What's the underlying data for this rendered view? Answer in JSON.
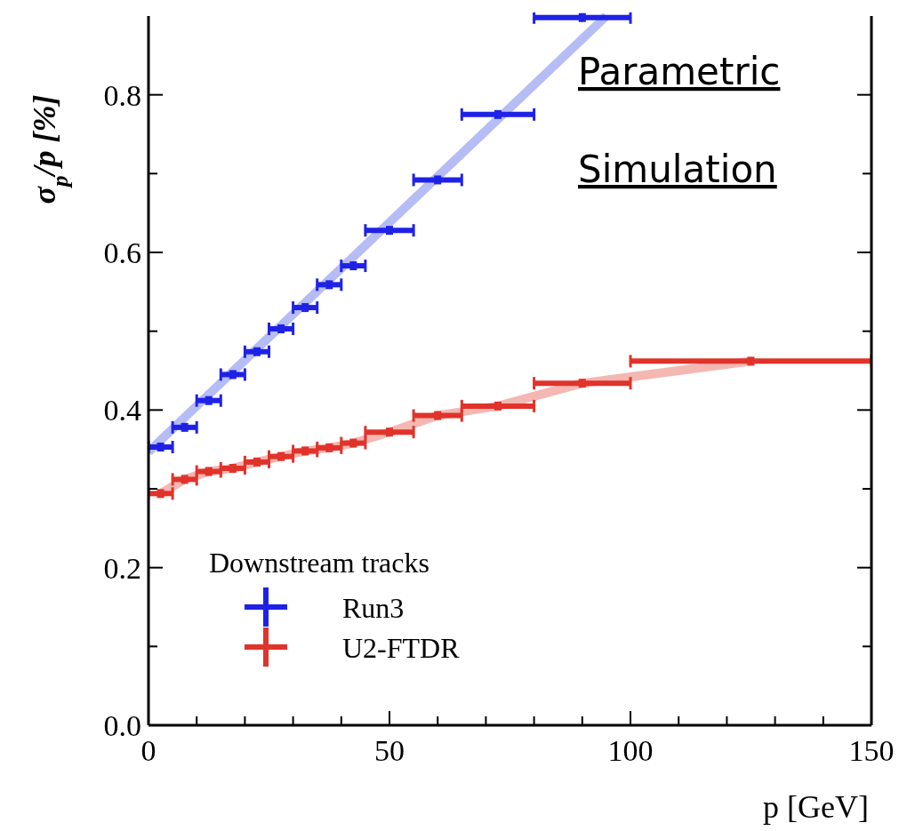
{
  "chart_data": {
    "type": "scatter",
    "xlabel": "p [GeV]",
    "ylabel": "σ$_{p}$/p [%]",
    "legend_title": "Downstream tracks",
    "legend": "bottom left",
    "xlim": [
      0,
      150
    ],
    "ylim": [
      0,
      0.9
    ],
    "xticks": [
      0,
      {
        "value": 10,
        "label": null
      },
      {
        "value": 20,
        "label": null
      },
      {
        "value": 30,
        "label": null
      },
      {
        "value": 40,
        "label": null
      },
      50,
      {
        "value": 60,
        "label": null
      },
      {
        "value": 70,
        "label": null
      },
      {
        "value": 80,
        "label": null
      },
      {
        "value": 90,
        "label": null
      },
      100,
      {
        "value": 110,
        "label": null
      },
      {
        "value": 120,
        "label": null
      },
      {
        "value": 130,
        "label": null
      },
      {
        "value": 140,
        "label": null
      },
      150
    ],
    "yticks": [
      {
        "value": 0,
        "label": "0.0"
      },
      {
        "value": 0.1,
        "label": null
      },
      0.2,
      {
        "value": 0.3,
        "label": null
      },
      0.4,
      {
        "value": 0.5,
        "label": null
      },
      0.6,
      {
        "value": 0.7,
        "label": null
      },
      0.8
    ],
    "annotations": [
      "Parametric",
      "Simulation"
    ],
    "series": [
      {
        "type": "line",
        "color": "#a8b0f4",
        "x": [
          0,
          95
        ],
        "values": [
          0.347,
          0.9
        ]
      },
      {
        "type": "line",
        "color": "#f2aaa4",
        "x": [
          2.5,
          7.5,
          12.5,
          17.5,
          22.5,
          27.5,
          32.5,
          37.5,
          42.5,
          50,
          60,
          72.5,
          90,
          125
        ],
        "values": [
          0.294,
          0.312,
          0.322,
          0.326,
          0.334,
          0.341,
          0.348,
          0.352,
          0.358,
          0.372,
          0.393,
          0.405,
          0.434,
          0.462
        ]
      },
      {
        "name": "Run3",
        "marker": "square",
        "color": "#1f22e6",
        "x": [
          2.5,
          7.5,
          12.5,
          17.5,
          22.5,
          27.5,
          32.5,
          37.5,
          42.5,
          50,
          60,
          72.5,
          90
        ],
        "values": [
          0.353,
          0.378,
          0.412,
          0.445,
          0.474,
          0.503,
          0.53,
          0.559,
          0.583,
          0.628,
          0.692,
          0.775,
          0.898
        ],
        "xerrors": [
          2.5,
          2.5,
          2.5,
          2.5,
          2.5,
          2.5,
          2.5,
          2.5,
          2.5,
          5,
          5,
          7.5,
          10
        ]
      },
      {
        "name": "U2-FTDR",
        "marker": "square",
        "color": "#e0332a",
        "x": [
          2.5,
          7.5,
          12.5,
          17.5,
          22.5,
          27.5,
          32.5,
          37.5,
          42.5,
          50,
          60,
          72.5,
          90,
          125
        ],
        "values": [
          0.294,
          0.312,
          0.322,
          0.326,
          0.334,
          0.341,
          0.348,
          0.352,
          0.358,
          0.372,
          0.393,
          0.405,
          0.434,
          0.462
        ],
        "xerrors": [
          2.5,
          2.5,
          2.5,
          2.5,
          2.5,
          2.5,
          2.5,
          2.5,
          2.5,
          5,
          5,
          7.5,
          10,
          25
        ]
      }
    ]
  }
}
